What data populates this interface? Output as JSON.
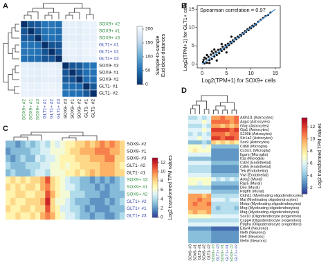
{
  "chart_data": [
    {
      "type": "heatmap",
      "panel": "A",
      "row_labels": [
        "SOX9+ #2",
        "SOX9+ #1",
        "SOX9+ #3",
        "GLT1+ #1",
        "GLT1+ #2",
        "GLT1+ #3",
        "SOX9- #3",
        "SOX9- #1",
        "SOX9- #2",
        "GLT1- #1",
        "GLT1- #2"
      ],
      "col_labels": [
        "SOX9+ #2",
        "SOX9+ #1",
        "SOX9+ #3",
        "GLT1+ #1",
        "GLT1+ #2",
        "GLT1+ #3",
        "SOX9- #3",
        "SOX9- #1",
        "SOX9- #2",
        "GLT1- #1",
        "GLT1- #2"
      ],
      "row_label_colors": [
        "#2e8b3e",
        "#2e8b3e",
        "#2e8b3e",
        "#2a3fa8",
        "#2a3fa8",
        "#2a3fa8",
        "#111111",
        "#111111",
        "#111111",
        "#111111",
        "#111111"
      ],
      "col_label_colors": [
        "#2e8b3e",
        "#2e8b3e",
        "#2e8b3e",
        "#2a3fa8",
        "#2a3fa8",
        "#2a3fa8",
        "#111111",
        "#111111",
        "#111111",
        "#111111",
        "#111111"
      ],
      "values": [
        [
          0,
          30,
          35,
          55,
          58,
          52,
          190,
          192,
          188,
          195,
          196
        ],
        [
          30,
          0,
          32,
          54,
          57,
          50,
          189,
          191,
          187,
          194,
          195
        ],
        [
          35,
          32,
          0,
          50,
          53,
          48,
          186,
          188,
          185,
          192,
          193
        ],
        [
          55,
          54,
          50,
          0,
          28,
          30,
          192,
          194,
          190,
          197,
          198
        ],
        [
          58,
          57,
          53,
          28,
          0,
          32,
          193,
          195,
          191,
          198,
          199
        ],
        [
          52,
          50,
          48,
          30,
          32,
          0,
          188,
          190,
          186,
          194,
          195
        ],
        [
          190,
          189,
          186,
          192,
          193,
          188,
          0,
          30,
          33,
          52,
          55
        ],
        [
          192,
          191,
          188,
          194,
          195,
          190,
          30,
          0,
          28,
          50,
          53
        ],
        [
          188,
          187,
          185,
          190,
          191,
          186,
          33,
          28,
          0,
          48,
          51
        ],
        [
          195,
          194,
          192,
          197,
          198,
          194,
          52,
          50,
          48,
          0,
          32
        ],
        [
          196,
          195,
          193,
          198,
          199,
          195,
          55,
          53,
          51,
          32,
          0
        ]
      ],
      "colormap": "Blues_r",
      "clim": [
        0,
        210
      ],
      "colorbar_ticks": [
        0,
        50,
        100,
        150,
        200
      ],
      "colorbar_label": [
        "Sample-to-sample",
        "Euclidean distances"
      ]
    },
    {
      "type": "scatter",
      "panel": "B",
      "annotation": "Spearman correlation = 0.97",
      "xlabel": "Log2(TPM+1) for SOX9+ cells",
      "ylabel": "Log2(TPM+1) for GLT1+ cells",
      "xlim": [
        -1,
        16
      ],
      "ylim": [
        -1,
        16
      ],
      "xticks": [
        0,
        5,
        10,
        15
      ],
      "yticks": [
        0,
        5,
        10,
        15
      ],
      "color": "#111111",
      "x": [
        0.2,
        0.5,
        0.8,
        1.0,
        1.3,
        1.5,
        1.8,
        2.0,
        2.3,
        2.5,
        2.8,
        3.0,
        3.3,
        3.5,
        3.8,
        4.0,
        4.2,
        4.5,
        4.8,
        5.0,
        5.3,
        5.5,
        5.8,
        6.0,
        6.3,
        6.5,
        6.8,
        7.0,
        7.3,
        7.5,
        7.8,
        8.0,
        8.3,
        8.5,
        8.8,
        9.0,
        9.3,
        9.5,
        9.8,
        10.0,
        10.3,
        10.5,
        10.8,
        11.0,
        11.5,
        12.0,
        12.5,
        13.0,
        13.5,
        14.0,
        1.0,
        2.0,
        3.0,
        4.0,
        5.0,
        0.5,
        1.5,
        2.5,
        6.0,
        0.3
      ],
      "y": [
        0.6,
        0.2,
        1.5,
        0.4,
        2.0,
        1.1,
        2.6,
        1.4,
        3.0,
        2.1,
        3.4,
        2.5,
        3.9,
        3.0,
        4.1,
        3.6,
        4.8,
        4.1,
        5.2,
        4.6,
        5.6,
        5.2,
        6.1,
        5.7,
        6.5,
        6.2,
        7.1,
        6.8,
        7.5,
        7.3,
        8.0,
        7.8,
        8.5,
        8.3,
        9.0,
        8.8,
        9.5,
        9.3,
        10.0,
        9.8,
        10.5,
        10.3,
        11.0,
        10.8,
        11.6,
        12.1,
        12.6,
        13.1,
        13.4,
        14.1,
        2.5,
        3.5,
        1.0,
        5.5,
        3.2,
        1.8,
        0.3,
        4.0,
        7.5,
        1.2
      ],
      "fit": {
        "x": [
          0,
          15
        ],
        "y": [
          0,
          15
        ],
        "color": "#4a8fd0"
      }
    },
    {
      "type": "heatmap",
      "panel": "C",
      "row_labels": [
        "SOX9- #2",
        "SOX9- #1",
        "SOX9- #3",
        "GLT1- #2",
        "GLT1- #1",
        "SOX9+ #3",
        "SOX9+ #1",
        "SOX9+ #2",
        "GLT1+ #2",
        "GLT1+ #1",
        "GLT1+ #3"
      ],
      "row_label_colors": [
        "#111111",
        "#111111",
        "#111111",
        "#111111",
        "#111111",
        "#2e8b3e",
        "#2e8b3e",
        "#2e8b3e",
        "#2a3fa8",
        "#2a3fa8",
        "#2a3fa8"
      ],
      "values": [
        [
          3,
          3,
          2,
          3,
          4,
          3,
          4,
          5,
          4,
          6,
          5,
          6,
          7,
          7,
          8,
          8,
          9,
          8,
          9,
          10,
          9,
          10,
          9,
          8
        ],
        [
          2,
          3,
          3,
          3,
          3,
          4,
          4,
          5,
          5,
          6,
          6,
          6,
          7,
          8,
          8,
          9,
          9,
          9,
          10,
          10,
          10,
          9,
          9,
          8
        ],
        [
          3,
          2,
          3,
          4,
          3,
          3,
          5,
          4,
          5,
          5,
          6,
          7,
          7,
          7,
          8,
          8,
          8,
          9,
          9,
          9,
          10,
          10,
          8,
          8
        ],
        [
          4,
          3,
          3,
          3,
          4,
          4,
          4,
          5,
          5,
          6,
          6,
          7,
          6,
          7,
          7,
          8,
          8,
          8,
          8,
          9,
          9,
          9,
          8,
          7
        ],
        [
          3,
          4,
          3,
          3,
          3,
          4,
          5,
          5,
          4,
          6,
          6,
          6,
          7,
          7,
          8,
          7,
          8,
          9,
          8,
          9,
          9,
          9,
          8,
          8
        ],
        [
          7,
          8,
          7,
          8,
          7,
          8,
          8,
          9,
          11,
          8,
          7,
          6,
          5,
          4,
          4,
          3,
          3,
          2,
          3,
          2,
          3,
          2,
          3,
          4
        ],
        [
          8,
          7,
          8,
          7,
          8,
          8,
          7,
          9,
          10,
          8,
          7,
          6,
          5,
          5,
          4,
          3,
          3,
          3,
          2,
          3,
          2,
          3,
          3,
          4
        ],
        [
          7,
          7,
          8,
          8,
          7,
          7,
          8,
          8,
          11,
          9,
          7,
          6,
          6,
          4,
          4,
          4,
          3,
          3,
          3,
          2,
          2,
          3,
          3,
          3
        ],
        [
          7,
          8,
          7,
          7,
          8,
          8,
          8,
          9,
          12,
          8,
          6,
          6,
          5,
          4,
          3,
          3,
          3,
          2,
          2,
          2,
          3,
          2,
          3,
          4
        ],
        [
          8,
          7,
          7,
          8,
          8,
          7,
          8,
          8,
          11,
          8,
          7,
          5,
          5,
          4,
          4,
          3,
          2,
          3,
          2,
          2,
          2,
          3,
          3,
          3
        ],
        [
          7,
          7,
          8,
          7,
          7,
          8,
          7,
          9,
          10,
          9,
          7,
          6,
          5,
          5,
          4,
          3,
          3,
          2,
          3,
          3,
          2,
          2,
          3,
          4
        ]
      ],
      "colormap": "RdYlBu_r",
      "clim": [
        0,
        13
      ],
      "colorbar_ticks": [
        0,
        2,
        4,
        6,
        8,
        10,
        12
      ],
      "colorbar_label": [
        "Log2 transformed TPM values"
      ]
    },
    {
      "type": "heatmap",
      "panel": "D",
      "row_labels": [
        "Aldh1l1 (Astrocytes)",
        "Aqp4 (Astrocytes)",
        "Gfap (Astrocytes)",
        "Gja1 (Astrocytes)",
        "S100b (Astrocytes)",
        "Slc1a2 (Astrocytes)",
        "Sox9 (Astrocytes)",
        "Cd68 (Microglia)",
        "Cx3cr1 (Microglia)",
        "Itgam (Microglia)",
        "Il1a (Microglia)",
        "Cd34 (Endothelial)",
        "Cdh5 (Endothelial)",
        "Tek (Endothelial)",
        "Vwf (Endothelial)",
        "Acta2 (Mural)",
        "Rgs5 (Mural)",
        "Des (Mural)",
        "Pdgfrb (Mural)",
        "Cldn11 (Myelinating oligodendrocytes)",
        "Mal (Myelinating oligodendrocytes)",
        "Mobp (Myelinating oligodendrocytes)",
        "Mog (Myelinating oligodendrocytes)",
        "Mag (Myelinating oligodendrocytes)",
        "Sox10 (Oligodendrocyte progenitors)",
        "Cspg4 (Oligodendrocyte progenitors)",
        "Pdgfra (Oligodendrocyte progenitors)",
        "Elavl4 (Neurons)",
        "Nefh (Neurons)",
        "Nefl (Neurons)",
        "Nefm (Neurons)"
      ],
      "row_label_colors": [
        "#111111",
        "#111111",
        "#111111",
        "#111111",
        "#111111",
        "#111111",
        "#111111",
        "#111111",
        "#111111",
        "#111111",
        "#111111",
        "#111111",
        "#111111",
        "#111111",
        "#111111",
        "#111111",
        "#111111",
        "#111111",
        "#111111",
        "#111111",
        "#111111",
        "#111111",
        "#111111",
        "#111111",
        "#111111",
        "#111111",
        "#111111",
        "#111111",
        "#111111",
        "#111111",
        "#111111"
      ],
      "col_labels": [
        "SOX9- #3",
        "SOX9- #1",
        "GLT1- #1",
        "SOX9- #2",
        "GLT1- #2",
        "SOX9+ #3",
        "GLT1+ #3",
        "SOX9+ #1",
        "GLT1+ #1",
        "SOX9+ #2",
        "GLT1+ #2"
      ],
      "col_label_colors": [
        "#111111",
        "#111111",
        "#111111",
        "#111111",
        "#111111",
        "#2e8b3e",
        "#2a3fa8",
        "#2e8b3e",
        "#2a3fa8",
        "#2e8b3e",
        "#2a3fa8"
      ],
      "values": [
        [
          5,
          5,
          6,
          5,
          6,
          10,
          10,
          11,
          10,
          10,
          11
        ],
        [
          6,
          6,
          6,
          7,
          6,
          11,
          11,
          11,
          11,
          10,
          11
        ],
        [
          5,
          5,
          5,
          6,
          5,
          10,
          10,
          9,
          10,
          9,
          10
        ],
        [
          6,
          6,
          6,
          7,
          6,
          12,
          12,
          12,
          12,
          11,
          12
        ],
        [
          5,
          6,
          5,
          6,
          5,
          11,
          11,
          11,
          10,
          11,
          11
        ],
        [
          6,
          6,
          7,
          6,
          6,
          12,
          12,
          11,
          12,
          12,
          11
        ],
        [
          4,
          4,
          4,
          5,
          4,
          9,
          8,
          9,
          8,
          9,
          8
        ],
        [
          7,
          7,
          7,
          6,
          7,
          4,
          4,
          4,
          4,
          4,
          4
        ],
        [
          7,
          8,
          7,
          7,
          7,
          3,
          3,
          3,
          3,
          3,
          3
        ],
        [
          6,
          6,
          6,
          6,
          6,
          3,
          3,
          3,
          3,
          3,
          3
        ],
        [
          4,
          4,
          4,
          4,
          4,
          3,
          3,
          3,
          3,
          3,
          3
        ],
        [
          6,
          6,
          6,
          6,
          6,
          4,
          4,
          4,
          4,
          4,
          4
        ],
        [
          5,
          5,
          5,
          5,
          5,
          3,
          3,
          3,
          3,
          3,
          3
        ],
        [
          5,
          5,
          5,
          5,
          5,
          3,
          3,
          3,
          3,
          3,
          3
        ],
        [
          6,
          6,
          6,
          6,
          6,
          4,
          4,
          4,
          4,
          4,
          4
        ],
        [
          7,
          7,
          7,
          7,
          7,
          6,
          5,
          6,
          5,
          6,
          5
        ],
        [
          7,
          7,
          6,
          7,
          7,
          4,
          4,
          4,
          4,
          4,
          4
        ],
        [
          5,
          5,
          5,
          5,
          5,
          3,
          3,
          3,
          3,
          3,
          3
        ],
        [
          6,
          6,
          6,
          6,
          6,
          4,
          4,
          4,
          4,
          4,
          4
        ],
        [
          10,
          10,
          10,
          9,
          10,
          5,
          5,
          5,
          5,
          5,
          5
        ],
        [
          10,
          10,
          11,
          10,
          10,
          6,
          6,
          6,
          5,
          6,
          6
        ],
        [
          10,
          11,
          10,
          10,
          11,
          5,
          5,
          5,
          5,
          5,
          5
        ],
        [
          10,
          10,
          10,
          10,
          10,
          5,
          4,
          5,
          5,
          5,
          4
        ],
        [
          9,
          10,
          9,
          9,
          10,
          5,
          5,
          5,
          5,
          5,
          5
        ],
        [
          7,
          7,
          7,
          7,
          7,
          6,
          6,
          6,
          6,
          6,
          6
        ],
        [
          5,
          5,
          5,
          5,
          5,
          5,
          5,
          5,
          5,
          5,
          5
        ],
        [
          6,
          6,
          6,
          6,
          6,
          6,
          6,
          6,
          6,
          6,
          6
        ],
        [
          3,
          3,
          3,
          3,
          3,
          2,
          2,
          2,
          2,
          2,
          2
        ],
        [
          4,
          4,
          4,
          4,
          4,
          3,
          3,
          3,
          3,
          3,
          3
        ],
        [
          4,
          4,
          4,
          4,
          4,
          3,
          3,
          3,
          3,
          3,
          3
        ],
        [
          4,
          4,
          4,
          4,
          4,
          3,
          3,
          3,
          3,
          3,
          3
        ]
      ],
      "colormap": "RdYlBu_r",
      "clim": [
        1,
        13.5
      ],
      "colorbar_ticks": [
        2,
        4,
        6,
        8,
        10,
        12
      ],
      "colorbar_label": [
        "Log2 transformed TPM values"
      ]
    }
  ]
}
